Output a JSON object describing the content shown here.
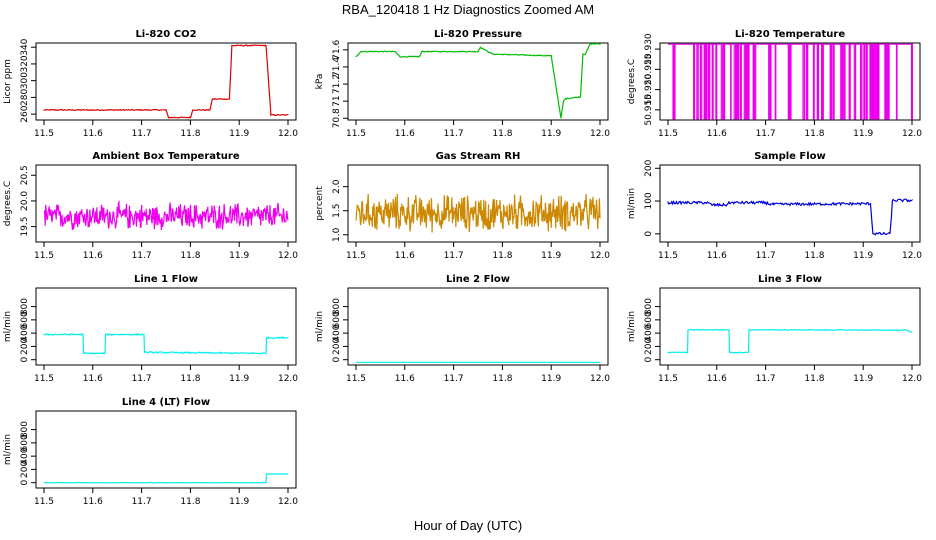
{
  "figure": {
    "title": "RBA_120418  1 Hz Diagnostics Zoomed AM",
    "xlabel": "Hour of Day (UTC)"
  },
  "chart_data": [
    {
      "type": "line",
      "title": "Li-820 CO2",
      "ylabel": "Licor ppm",
      "color": "#dd0000",
      "xlim": [
        11.5,
        12.0
      ],
      "ylim": [
        253,
        345
      ],
      "xticks": [
        "11.5",
        "11.6",
        "11.7",
        "11.8",
        "11.9",
        "12.0"
      ],
      "yticks": [
        260,
        280,
        300,
        320,
        340
      ],
      "x": [
        11.5,
        11.75,
        11.755,
        11.8,
        11.805,
        11.84,
        11.845,
        11.88,
        11.885,
        11.955,
        11.965,
        12.0
      ],
      "y": [
        265,
        265,
        256,
        256,
        265,
        265,
        278,
        278,
        342,
        342,
        259,
        259
      ],
      "noise": 0.6
    },
    {
      "type": "line",
      "title": "Li-820 Pressure",
      "ylabel": "kPa",
      "color": "#00bb00",
      "xlim": [
        11.5,
        12.0
      ],
      "ylim": [
        70.78,
        71.68
      ],
      "xticks": [
        "11.5",
        "11.6",
        "11.7",
        "11.8",
        "11.9",
        "12.0"
      ],
      "yticks": [
        70.8,
        71.0,
        71.2,
        71.4,
        71.6
      ],
      "x": [
        11.5,
        11.51,
        11.58,
        11.59,
        11.63,
        11.635,
        11.75,
        11.755,
        11.78,
        11.9,
        11.92,
        11.925,
        11.93,
        11.96,
        11.965,
        11.97,
        11.98,
        12.0
      ],
      "y": [
        71.52,
        71.58,
        71.58,
        71.52,
        71.52,
        71.58,
        71.58,
        71.63,
        71.55,
        71.53,
        70.8,
        71.0,
        71.03,
        71.05,
        71.55,
        71.55,
        71.67,
        71.67
      ],
      "noise": 0.005
    },
    {
      "type": "line",
      "title": "Li-820 Temperature",
      "ylabel": "degrees.C",
      "color": "#ee00ee",
      "xlim": [
        11.5,
        12.0
      ],
      "ylim": [
        50.9125,
        50.9315
      ],
      "xticks": [
        "11.5",
        "11.6",
        "11.7",
        "11.8",
        "11.9",
        "12.0"
      ],
      "yticks": [
        "50.915",
        "50.920",
        "50.925",
        "50.930"
      ],
      "pattern": "square-wave",
      "high": 50.9312,
      "low": 50.9128,
      "drops": 60,
      "noise": 0
    },
    {
      "type": "line",
      "title": "Ambient Box Temperature",
      "ylabel": "degrees.C",
      "color": "#ee00ee",
      "xlim": [
        11.5,
        12.0
      ],
      "ylim": [
        19.2,
        20.7
      ],
      "xticks": [
        "11.5",
        "11.6",
        "11.7",
        "11.8",
        "11.9",
        "12.0"
      ],
      "yticks": [
        "19.5",
        "20.0",
        "20.5"
      ],
      "pattern": "noise",
      "mean": 19.7,
      "spread": 0.3,
      "noise": 0
    },
    {
      "type": "line",
      "title": "Gas Stream RH",
      "ylabel": "percent",
      "color": "#cc8800",
      "xlim": [
        11.5,
        12.0
      ],
      "ylim": [
        0.85,
        2.45
      ],
      "xticks": [
        "11.5",
        "11.6",
        "11.7",
        "11.8",
        "11.9",
        "12.0"
      ],
      "yticks": [
        "1.0",
        "1.5",
        "2.0"
      ],
      "pattern": "noise",
      "mean": 1.45,
      "spread": 0.45,
      "noise": 0
    },
    {
      "type": "line",
      "title": "Sample Flow",
      "ylabel": "ml/min",
      "color": "#0000dd",
      "xlim": [
        11.5,
        12.0
      ],
      "ylim": [
        -25,
        210
      ],
      "xticks": [
        "11.5",
        "11.6",
        "11.7",
        "11.8",
        "11.9",
        "12.0"
      ],
      "yticks": [
        0,
        100,
        200
      ],
      "x": [
        11.5,
        11.58,
        11.59,
        11.62,
        11.625,
        11.7,
        11.71,
        11.915,
        11.92,
        11.955,
        11.96,
        12.0
      ],
      "y": [
        95,
        95,
        88,
        88,
        95,
        95,
        90,
        92,
        0,
        0,
        102,
        102
      ],
      "noise": 4
    },
    {
      "type": "line",
      "title": "Line 1 Flow",
      "ylabel": "ml/min",
      "color": "#00eeee",
      "xlim": [
        11.5,
        12.0
      ],
      "ylim": [
        -80,
        1080
      ],
      "xticks": [
        "11.5",
        "11.6",
        "11.7",
        "11.8",
        "11.9",
        "12.0"
      ],
      "yticks": [
        0,
        200,
        400,
        600,
        800
      ],
      "x": [
        11.5,
        11.58,
        11.581,
        11.625,
        11.626,
        11.705,
        11.706,
        11.955,
        11.956,
        12.0
      ],
      "y": [
        380,
        380,
        95,
        95,
        380,
        380,
        110,
        95,
        330,
        330
      ],
      "noise": 10
    },
    {
      "type": "line",
      "title": "Line 2 Flow",
      "ylabel": "ml/min",
      "color": "#00eeee",
      "xlim": [
        11.5,
        12.0
      ],
      "ylim": [
        -80,
        1080
      ],
      "xticks": [
        "11.5",
        "11.6",
        "11.7",
        "11.8",
        "11.9",
        "12.0"
      ],
      "yticks": [
        0,
        200,
        400,
        600,
        800
      ],
      "x": [
        11.5,
        12.0
      ],
      "y": [
        -40,
        -40
      ],
      "noise": 0
    },
    {
      "type": "line",
      "title": "Line 3 Flow",
      "ylabel": "ml/min",
      "color": "#00eeee",
      "xlim": [
        11.5,
        12.0
      ],
      "ylim": [
        -80,
        1080
      ],
      "xticks": [
        "11.5",
        "11.6",
        "11.7",
        "11.8",
        "11.9",
        "12.0"
      ],
      "yticks": [
        0,
        200,
        400,
        600,
        800
      ],
      "x": [
        11.5,
        11.54,
        11.541,
        11.625,
        11.626,
        11.665,
        11.666,
        11.99,
        12.0
      ],
      "y": [
        110,
        110,
        450,
        450,
        110,
        110,
        450,
        445,
        410
      ],
      "noise": 6
    },
    {
      "type": "line",
      "title": "Line 4 (LT) Flow",
      "ylabel": "ml/min",
      "color": "#00eeee",
      "xlim": [
        11.5,
        12.0
      ],
      "ylim": [
        -80,
        1080
      ],
      "xticks": [
        "11.5",
        "11.6",
        "11.7",
        "11.8",
        "11.9",
        "12.0"
      ],
      "yticks": [
        0,
        200,
        400,
        600,
        800
      ],
      "x": [
        11.5,
        11.955,
        11.956,
        12.0
      ],
      "y": [
        0,
        0,
        130,
        130
      ],
      "noise": 3
    }
  ]
}
